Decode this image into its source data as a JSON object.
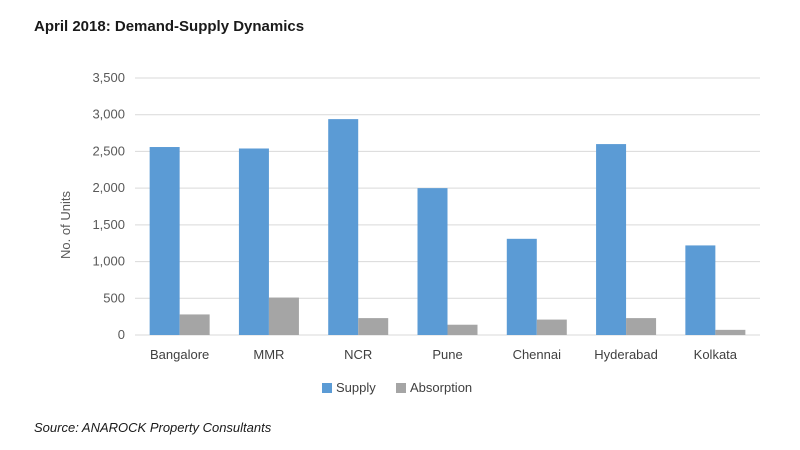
{
  "title": "April 2018: Demand-Supply Dynamics",
  "source": "Source: ANAROCK Property Consultants",
  "colors": {
    "supply": "#5b9bd5",
    "absorption": "#a5a5a5",
    "grid": "#d9d9d9"
  },
  "chart_data": {
    "type": "bar",
    "title": "April 2018: Demand-Supply Dynamics",
    "xlabel": "",
    "ylabel": "No. of Units",
    "ylim": [
      0,
      3500
    ],
    "yticks": [
      0,
      500,
      1000,
      1500,
      2000,
      2500,
      3000,
      3500
    ],
    "ytick_labels": [
      "0",
      "500",
      "1,000",
      "1,500",
      "2,000",
      "2,500",
      "3,000",
      "3,500"
    ],
    "grid": true,
    "legend_position": "bottom",
    "categories": [
      "Bangalore",
      "MMR",
      "NCR",
      "Pune",
      "Chennai",
      "Hyderabad",
      "Kolkata"
    ],
    "series": [
      {
        "name": "Supply",
        "values": [
          2560,
          2540,
          2940,
          2000,
          1310,
          2600,
          1220
        ]
      },
      {
        "name": "Absorption",
        "values": [
          280,
          510,
          230,
          140,
          210,
          230,
          70
        ]
      }
    ]
  }
}
